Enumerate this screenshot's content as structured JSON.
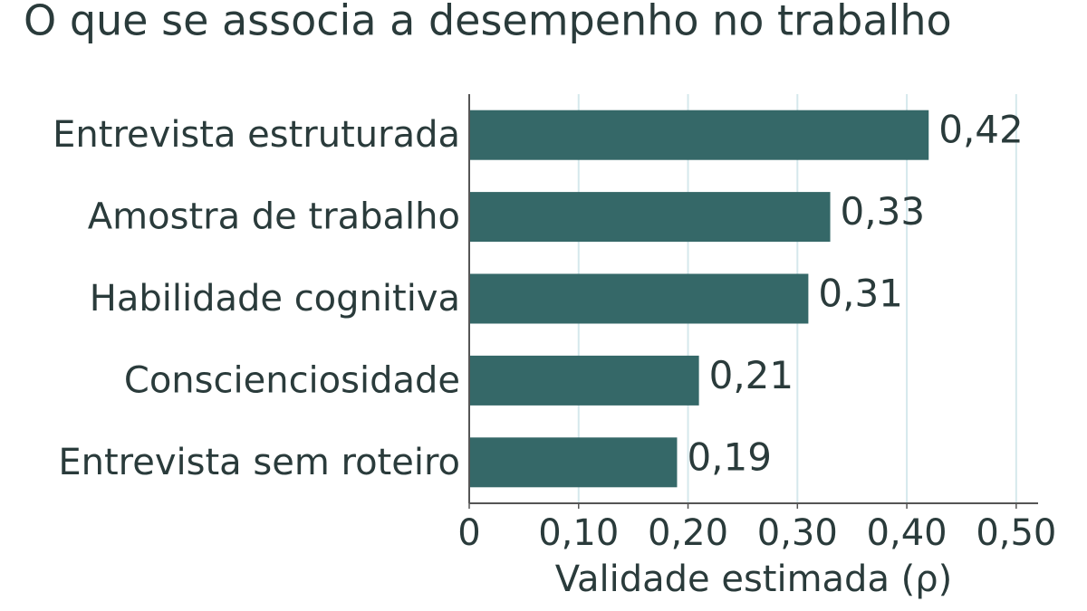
{
  "chart_data": {
    "type": "barh",
    "title": "O que se associa a desempenho no trabalho",
    "x_label": "Validade estimada (ρ)",
    "categories": [
      "Entrevista estruturada",
      "Amostra de trabalho",
      "Habilidade cognitiva",
      "Conscienciosidade",
      "Entrevista sem roteiro"
    ],
    "values": [
      0.42,
      0.33,
      0.31,
      0.21,
      0.19
    ],
    "value_labels": [
      "0,42",
      "0,33",
      "0,31",
      "0,21",
      "0,19"
    ],
    "color": "#356868",
    "xlim": [
      0,
      0.52
    ],
    "xticks": [
      0,
      {
        "value": 0.1,
        "label": "0,10"
      },
      {
        "value": 0.2,
        "label": "0,20"
      },
      {
        "value": 0.3,
        "label": "0,30"
      },
      {
        "value": 0.4,
        "label": "0,40"
      },
      {
        "value": 0.5,
        "label": "0,50"
      }
    ],
    "grid": true
  }
}
